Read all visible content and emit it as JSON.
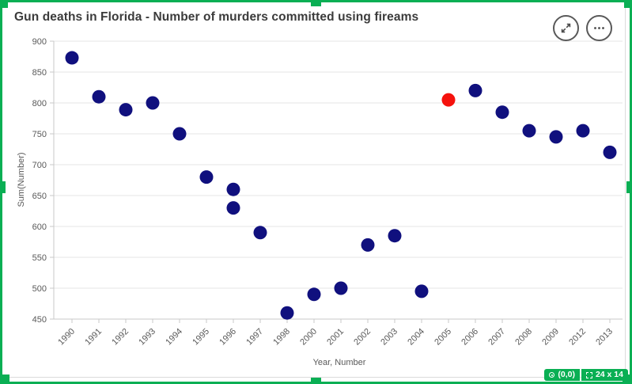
{
  "colors": {
    "selection_green": "#0aaf54",
    "title_text": "#3b3b3b",
    "axis_text": "#595959",
    "gridline": "#e4e4e4",
    "axis_line": "#c9c9c9"
  },
  "icons": {
    "expand": "expand-arrows-icon",
    "more": "ellipsis-icon",
    "badge_position": "target-icon",
    "badge_size": "dashed-rect-icon"
  },
  "grid_badge": {
    "position": "(0,0)",
    "size": "24 x 14"
  },
  "chart_data": {
    "type": "scatter",
    "title": "Gun deaths in Florida - Number of murders committed using fireams",
    "xlabel": "Year, Number",
    "ylabel": "Sum(Number)",
    "ylim": [
      450,
      900
    ],
    "ytick_step": 50,
    "grid": true,
    "legend": "none",
    "point_color": "#10107e",
    "highlight_color": "#f5120d",
    "xcategories": [
      "1990",
      "1991",
      "1992",
      "1993",
      "1994",
      "1995",
      "1996",
      "1997",
      "1998",
      "2000",
      "2001",
      "2002",
      "2003",
      "2004",
      "2005",
      "2006",
      "2007",
      "2008",
      "2009",
      "2012",
      "2013"
    ],
    "points": [
      {
        "x": "1990",
        "y": 873
      },
      {
        "x": "1991",
        "y": 810
      },
      {
        "x": "1992",
        "y": 789
      },
      {
        "x": "1993",
        "y": 800
      },
      {
        "x": "1994",
        "y": 750
      },
      {
        "x": "1995",
        "y": 680
      },
      {
        "x": "1996",
        "y": 660
      },
      {
        "x": "1996",
        "y": 630
      },
      {
        "x": "1997",
        "y": 590
      },
      {
        "x": "1998",
        "y": 460
      },
      {
        "x": "2000",
        "y": 490
      },
      {
        "x": "2001",
        "y": 500
      },
      {
        "x": "2002",
        "y": 570
      },
      {
        "x": "2003",
        "y": 585
      },
      {
        "x": "2004",
        "y": 495
      },
      {
        "x": "2005",
        "y": 805,
        "highlight": true
      },
      {
        "x": "2006",
        "y": 820
      },
      {
        "x": "2007",
        "y": 785
      },
      {
        "x": "2008",
        "y": 755
      },
      {
        "x": "2009",
        "y": 745
      },
      {
        "x": "2012",
        "y": 755
      },
      {
        "x": "2013",
        "y": 720
      }
    ]
  }
}
